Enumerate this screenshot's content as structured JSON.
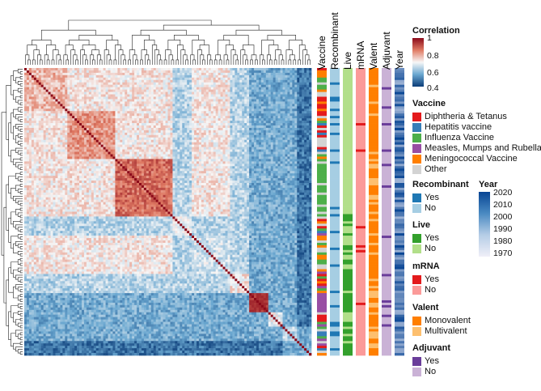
{
  "chart_data": {
    "type": "heatmap",
    "title": "",
    "description_of_values": "Clustered correlation heatmap of vaccine datasets with row annotation bars",
    "matrix_size": 120,
    "correlation_scale": {
      "title": "Correlation",
      "min": 0.4,
      "max": 1,
      "ticks": [
        "1",
        "0.8",
        "0.6",
        "0.4"
      ],
      "colors": [
        "#0b3c78",
        "#6aa7d0",
        "#f7f7f7",
        "#e07b64",
        "#8b0a1a"
      ]
    },
    "annotation_columns": [
      "Vaccine",
      "Recombinant",
      "Live",
      "mRNA",
      "Valent",
      "Adjuvant",
      "Year"
    ],
    "vaccine": {
      "title": "Vaccine",
      "items": [
        {
          "label": "Diphtheria & Tetanus",
          "color": "#e41a1c"
        },
        {
          "label": "Hepatitis vaccine",
          "color": "#377eb8"
        },
        {
          "label": "Influenza Vaccine",
          "color": "#4daf4a"
        },
        {
          "label": "Measles, Mumps and Rubella",
          "color": "#984ea3"
        },
        {
          "label": "Meningococcal Vaccine",
          "color": "#ff7f00"
        },
        {
          "label": "Other",
          "color": "#d3d3d3"
        }
      ]
    },
    "recombinant": {
      "title": "Recombinant",
      "items": [
        {
          "label": "Yes",
          "color": "#1f78b4"
        },
        {
          "label": "No",
          "color": "#a6cee3"
        }
      ]
    },
    "live": {
      "title": "Live",
      "items": [
        {
          "label": "Yes",
          "color": "#33a02c"
        },
        {
          "label": "No",
          "color": "#b2df8a"
        }
      ]
    },
    "mrna": {
      "title": "mRNA",
      "items": [
        {
          "label": "Yes",
          "color": "#e31a1c"
        },
        {
          "label": "No",
          "color": "#fb9a99"
        }
      ]
    },
    "valent": {
      "title": "Valent",
      "items": [
        {
          "label": "Monovalent",
          "color": "#ff7f00"
        },
        {
          "label": "Multivalent",
          "color": "#fdbf6f"
        }
      ]
    },
    "adjuvant": {
      "title": "Adjuvant",
      "items": [
        {
          "label": "Yes",
          "color": "#6a3d9a"
        },
        {
          "label": "No",
          "color": "#cab2d6"
        }
      ]
    },
    "year_scale": {
      "title": "Year",
      "min": 1970,
      "max": 2020,
      "ticks": [
        "2020",
        "2010",
        "2000",
        "1990",
        "1980",
        "1970"
      ],
      "colors": [
        "#f0eff8",
        "#084594"
      ]
    }
  }
}
